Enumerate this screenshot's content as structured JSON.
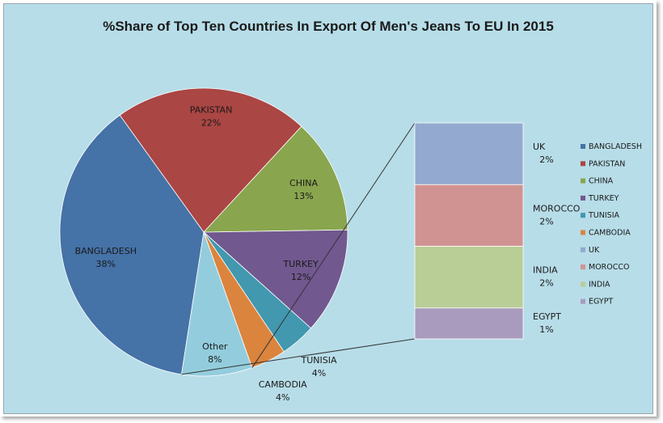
{
  "chart_data": {
    "type": "pie",
    "title": "%Share of Top Ten Countries In Export Of Men's Jeans To EU In 2015",
    "slices": [
      {
        "name": "BANGLADESH",
        "value": 38,
        "label": "38%",
        "color": "#4572a7"
      },
      {
        "name": "PAKISTAN",
        "value": 22,
        "label": "22%",
        "color": "#aa4643"
      },
      {
        "name": "CHINA",
        "value": 13,
        "label": "13%",
        "color": "#89a54e"
      },
      {
        "name": "TURKEY",
        "value": 12,
        "label": "12%",
        "color": "#71588f"
      },
      {
        "name": "TUNISIA",
        "value": 4,
        "label": "4%",
        "color": "#4198af"
      },
      {
        "name": "CAMBODIA",
        "value": 4,
        "label": "4%",
        "color": "#db843d"
      },
      {
        "name": "Other",
        "value": 8,
        "label": "8%",
        "color": "#93cddd"
      }
    ],
    "breakdown_of": "Other",
    "breakdown": [
      {
        "name": "UK",
        "value": 2,
        "label": "2%",
        "color": "#93a9cf"
      },
      {
        "name": "MOROCCO",
        "value": 2,
        "label": "2%",
        "color": "#d19392"
      },
      {
        "name": "INDIA",
        "value": 2,
        "label": "2%",
        "color": "#b9cd96"
      },
      {
        "name": "EGYPT",
        "value": 1,
        "label": "1%",
        "color": "#a99bbd"
      }
    ],
    "legend": [
      "BANGLADESH",
      "PAKISTAN",
      "CHINA",
      "TURKEY",
      "TUNISIA",
      "CAMBODIA",
      "UK",
      "MOROCCO",
      "INDIA",
      "EGYPT"
    ],
    "legend_position": "right",
    "background": "#b7dde8"
  }
}
